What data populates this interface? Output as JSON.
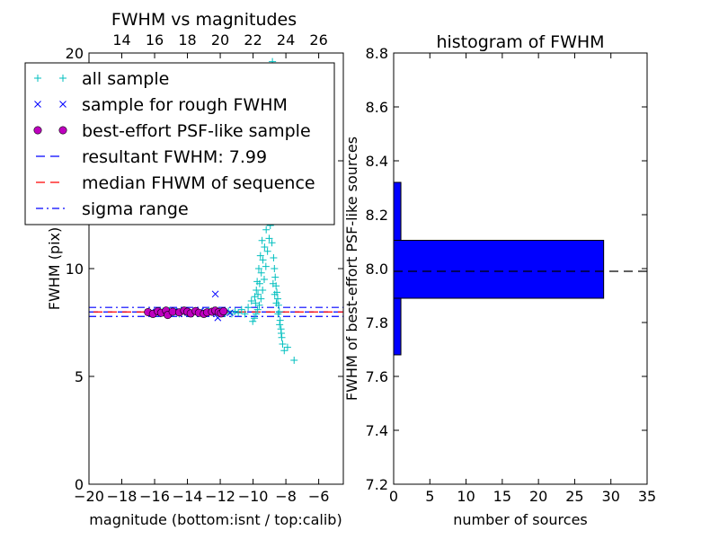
{
  "chart_data": [
    {
      "type": "scatter",
      "title": "FWHM vs magnitudes",
      "xlabel": "magnitude (bottom:isnt / top:calib)",
      "ylabel": "FWHM (pix)",
      "xlim": [
        -20,
        -4.5
      ],
      "ylim": [
        0,
        20
      ],
      "xticks": [
        -20,
        -18,
        -16,
        -14,
        -12,
        -10,
        -8,
        -6
      ],
      "xtick_labels": [
        "−20",
        "−18",
        "−16",
        "−14",
        "−12",
        "−10",
        "−8",
        "−6"
      ],
      "yticks": [
        0,
        5,
        10,
        15,
        20
      ],
      "ytick_labels": [
        "0",
        "5",
        "10",
        "15",
        "20"
      ],
      "top_axis": {
        "ticks": [
          14,
          16,
          18,
          20,
          22,
          24,
          26
        ],
        "tick_labels": [
          "14",
          "16",
          "18",
          "20",
          "22",
          "24",
          "26"
        ],
        "offset": 32
      },
      "legend": {
        "placement": "upper-left",
        "entries": [
          {
            "label": "all sample",
            "marker": "plus",
            "color": "#00bfbf"
          },
          {
            "label": "sample for rough FWHM",
            "marker": "x",
            "color": "#0000ff"
          },
          {
            "label": "best-effort PSF-like sample",
            "marker": "circle",
            "color": "#bf00bf"
          },
          {
            "label": "resultant FWHM: 7.99",
            "marker": "dashed",
            "color": "#0000ff"
          },
          {
            "label": "median FHWM of sequence",
            "marker": "dashed",
            "color": "#ff0000"
          },
          {
            "label": "sigma range",
            "marker": "dashdot",
            "color": "#0000ff"
          }
        ]
      },
      "series": [
        {
          "name": "all sample",
          "marker": "plus",
          "color": "#00bfbf",
          "points": [
            [
              -16.3,
              7.95
            ],
            [
              -16.1,
              7.9
            ],
            [
              -15.9,
              8.0
            ],
            [
              -15.7,
              7.92
            ],
            [
              -15.5,
              8.02
            ],
            [
              -15.3,
              7.98
            ],
            [
              -15.1,
              8.05
            ],
            [
              -14.9,
              7.95
            ],
            [
              -14.7,
              8.0
            ],
            [
              -14.5,
              7.9
            ],
            [
              -14.3,
              8.03
            ],
            [
              -14.1,
              7.97
            ],
            [
              -13.9,
              8.0
            ],
            [
              -13.7,
              7.94
            ],
            [
              -13.5,
              8.02
            ],
            [
              -13.3,
              7.96
            ],
            [
              -13.1,
              8.01
            ],
            [
              -12.9,
              7.93
            ],
            [
              -12.7,
              8.04
            ],
            [
              -12.5,
              7.98
            ],
            [
              -12.3,
              8.05
            ],
            [
              -12.1,
              7.95
            ],
            [
              -11.9,
              8.0
            ],
            [
              -11.7,
              7.92
            ],
            [
              -11.5,
              8.03
            ],
            [
              -11.3,
              7.9
            ],
            [
              -11.1,
              8.02
            ],
            [
              -10.9,
              7.95
            ],
            [
              -10.7,
              8.1
            ],
            [
              -10.5,
              7.9
            ],
            [
              -10.3,
              8.2
            ],
            [
              -10.1,
              8.5
            ],
            [
              -9.9,
              8.7
            ],
            [
              -9.8,
              9.0
            ],
            [
              -9.7,
              8.8
            ],
            [
              -9.6,
              9.3
            ],
            [
              -9.5,
              9.8
            ],
            [
              -9.4,
              10.4
            ],
            [
              -9.3,
              11.0
            ],
            [
              -9.2,
              11.8
            ],
            [
              -9.1,
              12.6
            ],
            [
              -9.0,
              13.5
            ],
            [
              -8.9,
              14.5
            ],
            [
              -8.95,
              12.0
            ],
            [
              -8.85,
              11.2
            ],
            [
              -8.75,
              10.5
            ],
            [
              -8.7,
              10.0
            ],
            [
              -8.65,
              9.6
            ],
            [
              -8.6,
              9.2
            ],
            [
              -8.55,
              8.9
            ],
            [
              -8.5,
              8.6
            ],
            [
              -8.45,
              8.3
            ],
            [
              -8.4,
              8.0
            ],
            [
              -8.35,
              7.6
            ],
            [
              -8.3,
              7.2
            ],
            [
              -8.25,
              6.8
            ],
            [
              -8.2,
              6.5
            ],
            [
              -8.1,
              6.2
            ],
            [
              -7.9,
              6.35
            ],
            [
              -7.5,
              5.75
            ],
            [
              -9.35,
              12.7
            ],
            [
              -9.25,
              13.4
            ],
            [
              -9.15,
              14.1
            ],
            [
              -9.05,
              15.2
            ],
            [
              -8.98,
              16.2
            ],
            [
              -8.92,
              17.3
            ],
            [
              -8.88,
              18.6
            ],
            [
              -8.82,
              19.6
            ],
            [
              -9.02,
              11.4
            ],
            [
              -9.12,
              10.8
            ],
            [
              -9.22,
              10.1
            ],
            [
              -9.32,
              9.5
            ],
            [
              -9.42,
              9.0
            ],
            [
              -9.52,
              8.6
            ],
            [
              -9.62,
              8.3
            ],
            [
              -9.72,
              8.1
            ],
            [
              -9.82,
              7.9
            ],
            [
              -9.92,
              7.7
            ],
            [
              -10.02,
              7.55
            ],
            [
              -8.78,
              9.3
            ],
            [
              -8.68,
              8.8
            ],
            [
              -8.58,
              8.4
            ],
            [
              -8.48,
              7.9
            ],
            [
              -8.38,
              7.4
            ],
            [
              -8.28,
              7.0
            ],
            [
              -9.45,
              11.3
            ],
            [
              -9.55,
              10.6
            ],
            [
              -9.65,
              10.0
            ],
            [
              -9.75,
              9.4
            ],
            [
              -9.85,
              8.4
            ]
          ]
        },
        {
          "name": "sample for rough FWHM",
          "marker": "x",
          "color": "#0000ff",
          "points": [
            [
              -16.2,
              8.0
            ],
            [
              -15.6,
              7.95
            ],
            [
              -14.8,
              8.02
            ],
            [
              -14.0,
              7.97
            ],
            [
              -13.2,
              8.03
            ],
            [
              -12.6,
              7.96
            ],
            [
              -12.3,
              8.82
            ],
            [
              -12.15,
              7.72
            ],
            [
              -11.8,
              8.0
            ],
            [
              -11.4,
              7.95
            ]
          ]
        },
        {
          "name": "best-effort PSF-like sample",
          "marker": "circle",
          "color": "#bf00bf",
          "points": [
            [
              -16.4,
              7.98
            ],
            [
              -16.1,
              7.9
            ],
            [
              -15.8,
              8.02
            ],
            [
              -15.6,
              7.95
            ],
            [
              -15.3,
              8.05
            ],
            [
              -15.2,
              7.85
            ],
            [
              -14.9,
              8.0
            ],
            [
              -14.5,
              7.97
            ],
            [
              -14.2,
              8.05
            ],
            [
              -14.0,
              8.0
            ],
            [
              -13.8,
              7.92
            ],
            [
              -13.5,
              8.03
            ],
            [
              -13.3,
              7.95
            ],
            [
              -13.0,
              7.9
            ],
            [
              -12.8,
              7.97
            ],
            [
              -12.5,
              8.0
            ],
            [
              -12.3,
              8.05
            ],
            [
              -12.1,
              7.98
            ],
            [
              -11.95,
              7.92
            ],
            [
              -11.8,
              8.02
            ]
          ]
        }
      ],
      "lines": [
        {
          "name": "resultant FWHM: 7.99",
          "y": 7.99,
          "style": "dashed",
          "color": "#0000ff"
        },
        {
          "name": "median FHWM of sequence",
          "y": 7.99,
          "style": "dashed",
          "color": "#ff0000"
        },
        {
          "name": "sigma range",
          "y": 8.2,
          "style": "dashdot",
          "color": "#0000ff"
        },
        {
          "name": "sigma range",
          "y": 7.78,
          "style": "dashdot",
          "color": "#0000ff"
        }
      ]
    },
    {
      "type": "bar",
      "orientation": "horizontal",
      "title": "histogram of FWHM",
      "xlabel": "number of sources",
      "ylabel": "FWHM of best-effort PSF-like sources",
      "xlim": [
        0,
        35
      ],
      "ylim": [
        7.2,
        8.8
      ],
      "xticks": [
        0,
        5,
        10,
        15,
        20,
        25,
        30,
        35
      ],
      "xtick_labels": [
        "0",
        "5",
        "10",
        "15",
        "20",
        "25",
        "30",
        "35"
      ],
      "yticks": [
        7.2,
        7.4,
        7.6,
        7.8,
        8.0,
        8.2,
        8.4,
        8.6,
        8.8
      ],
      "ytick_labels": [
        "7.2",
        "7.4",
        "7.6",
        "7.8",
        "8.0",
        "8.2",
        "8.4",
        "8.6",
        "8.8"
      ],
      "bins": [
        {
          "from": 7.68,
          "to": 7.89,
          "count": 1
        },
        {
          "from": 7.89,
          "to": 8.105,
          "count": 29
        },
        {
          "from": 8.105,
          "to": 8.32,
          "count": 1
        }
      ],
      "bar_color": "#0000ff",
      "reference_line": {
        "y": 7.99,
        "style": "dashed",
        "color": "#000000"
      }
    }
  ]
}
